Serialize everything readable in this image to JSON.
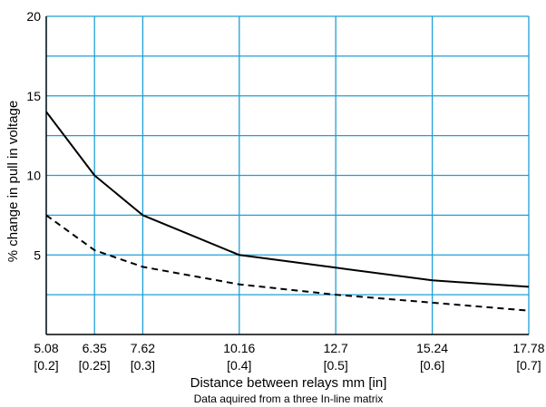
{
  "chart_data": {
    "type": "line",
    "title": "",
    "xlabel": "Distance between relays    mm [in]",
    "ylabel": "% change in pull in voltage",
    "note": "Data aquired from a three In-line matrix",
    "xlim": [
      5.08,
      17.78
    ],
    "ylim": [
      0,
      20
    ],
    "grid": true,
    "grid_color": "#1e9fd8",
    "line_color": "#000000",
    "x_ticks": [
      {
        "value": 5.08,
        "mm": "5.08",
        "inch": "[0.2]"
      },
      {
        "value": 6.35,
        "mm": "6.35",
        "inch": "[0.25]"
      },
      {
        "value": 7.62,
        "mm": "7.62",
        "inch": "[0.3]"
      },
      {
        "value": 10.16,
        "mm": "10.16",
        "inch": "[0.4]"
      },
      {
        "value": 12.7,
        "mm": "12.7",
        "inch": "[0.5]"
      },
      {
        "value": 15.24,
        "mm": "15.24",
        "inch": "[0.6]"
      },
      {
        "value": 17.78,
        "mm": "17.78",
        "inch": "[0.7]"
      }
    ],
    "y_ticks": [
      {
        "value": 5,
        "label": "5"
      },
      {
        "value": 10,
        "label": "10"
      },
      {
        "value": 15,
        "label": "15"
      },
      {
        "value": 20,
        "label": "20"
      }
    ],
    "y_gridlines": [
      2.5,
      5,
      7.5,
      10,
      12.5,
      15,
      17.5,
      20
    ],
    "series": [
      {
        "style": "solid",
        "x": [
          5.08,
          6.35,
          7.62,
          10.16,
          12.7,
          15.24,
          17.78
        ],
        "y": [
          14.0,
          10.0,
          7.5,
          5.0,
          4.2,
          3.4,
          3.0
        ]
      },
      {
        "style": "dashed",
        "x": [
          5.08,
          6.35,
          7.62,
          10.16,
          12.7,
          15.24,
          17.78
        ],
        "y": [
          7.5,
          5.3,
          4.25,
          3.15,
          2.5,
          2.0,
          1.5
        ]
      }
    ]
  }
}
